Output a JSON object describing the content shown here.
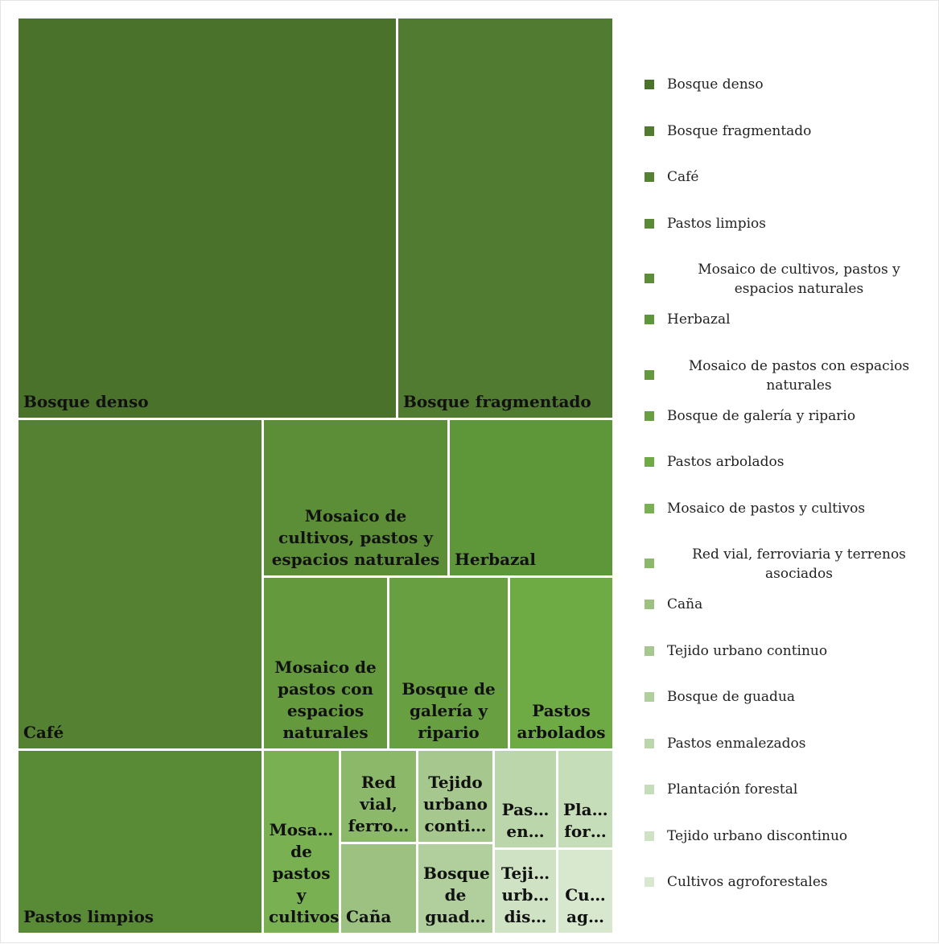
{
  "chart_data": {
    "type": "treemap",
    "title": "",
    "legend_position": "right",
    "items": [
      {
        "label": "Bosque denso",
        "display": "Bosque denso",
        "value": 23.5,
        "color": "#4a722a"
      },
      {
        "label": "Bosque fragmentado",
        "display": "Bosque fragmentado",
        "value": 13.4,
        "color": "#507b30"
      },
      {
        "label": "Café",
        "display": "Café",
        "value": 15.8,
        "color": "#548232"
      },
      {
        "label": "Pastos limpios",
        "display": "Pastos limpios",
        "value": 7.3,
        "color": "#598a35"
      },
      {
        "label": "Mosaico de cultivos, pastos y espacios naturales",
        "display": "Mosaico de cultivos, pastos y espacios naturales",
        "value": 5.3,
        "color": "#5c8e37"
      },
      {
        "label": "Herbazal",
        "display": "Herbazal",
        "value": 4.8,
        "color": "#5e963a"
      },
      {
        "label": "Mosaico de pastos con espacios naturales",
        "display": "Mosaico de pastos con espacios naturales",
        "value": 4.5,
        "color": "#64993d"
      },
      {
        "label": "Bosque de galería y ripario",
        "display": "Bosque de galería y ripario",
        "value": 4.4,
        "color": "#689f41"
      },
      {
        "label": "Pastos arbolados",
        "display": "Pastos arbolados",
        "value": 3.9,
        "color": "#6fab45"
      },
      {
        "label": "Mosaico de pastos y cultivos",
        "display": "Mosa… de pastos y cultivos",
        "value": 2.9,
        "color": "#79b052"
      },
      {
        "label": "Red vial, ferroviaria y terrenos asociados",
        "display": "Red vial, ferro…",
        "value": 1.4,
        "color": "#8bb869"
      },
      {
        "label": "Caña",
        "display": "Caña",
        "value": 1.4,
        "color": "#9cc181"
      },
      {
        "label": "Tejido urbano continuo",
        "display": "Tejido urbano conti…",
        "value": 1.2,
        "color": "#a6c88e"
      },
      {
        "label": "Bosque de guadua",
        "display": "Bosque de guad…",
        "value": 1.2,
        "color": "#b0cf9c"
      },
      {
        "label": "Pastos enmalezados",
        "display": "Pas… en…",
        "value": 1.0,
        "color": "#bbd6ab"
      },
      {
        "label": "Plantación forestal",
        "display": "Pla… for…",
        "value": 0.9,
        "color": "#c6ddb9"
      },
      {
        "label": "Tejido urbano discontinuo",
        "display": "Teji… urb… dis…",
        "value": 0.8,
        "color": "#cfe3c4"
      },
      {
        "label": "Cultivos agroforestales",
        "display": "Cu… ag…",
        "value": 0.7,
        "color": "#d8e8cf"
      }
    ]
  }
}
